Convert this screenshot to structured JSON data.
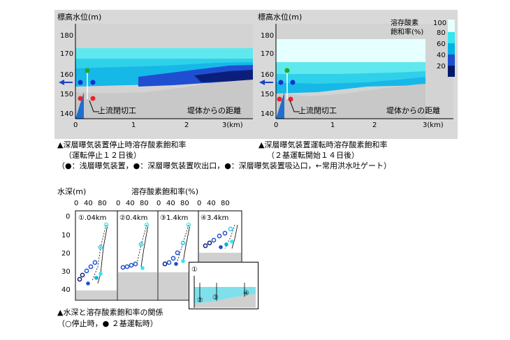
{
  "left_panel": {
    "ylabel": "標高水位(m)",
    "yticks": [
      "180",
      "170",
      "160",
      "150",
      "140"
    ],
    "xticks": [
      "0",
      "1",
      "2",
      "3(km)"
    ],
    "label_dam": "上流閉切工",
    "label_distance": "堤体からの距離",
    "caption_line1": "▲深層曝気装置停止時溶存酸素飽和率",
    "caption_line2": "（運転停止１２日後）"
  },
  "right_panel": {
    "ylabel": "標高水位(m)",
    "yticks": [
      "180",
      "170",
      "160",
      "150",
      "140"
    ],
    "xticks": [
      "0",
      "1",
      "2",
      "3(km)"
    ],
    "label_dam": "上流閉切工",
    "label_distance": "堤体からの距離",
    "legend_title_1": "溶存酸素",
    "legend_title_2": "飽和率(%)",
    "legend_ticks": [
      "100",
      "80",
      "60",
      "40",
      "20"
    ],
    "legend_colors": [
      "#e6ffff",
      "#33e6f0",
      "#00b3e6",
      "#1f4fd0",
      "#001a66"
    ],
    "caption_line1": "▲深層曝気装置運転時溶存酸素飽和率",
    "caption_line2": "（２基運転開始１４日後）"
  },
  "legend_note": "（●：浅層曝気装置，●：深層曝気装置吹出口，●：深層曝気装置吸込口，←常用洪水吐ゲート）",
  "marker_colors": {
    "shallow": "#22aa22",
    "deep_outlet": "#1a2fd0",
    "deep_inlet": "#ee2222",
    "gate_arrow": "#1a44cc"
  },
  "profile": {
    "ylabel": "水深(m)",
    "xlabel": "溶存酸素飽和率(%)",
    "xticks": [
      "0",
      "40",
      "80"
    ],
    "yticks": [
      "0",
      "10",
      "20",
      "30",
      "40"
    ],
    "stations": [
      "①.04km",
      "②0.4km",
      "③1.4km",
      "④3.4km"
    ],
    "inset_labels": [
      "①",
      "②",
      "③",
      "④"
    ],
    "caption_line1": "▲水深と溶存酸素飽和率の関係",
    "caption_line2": "（○停止時，● ２基運転時）"
  }
}
